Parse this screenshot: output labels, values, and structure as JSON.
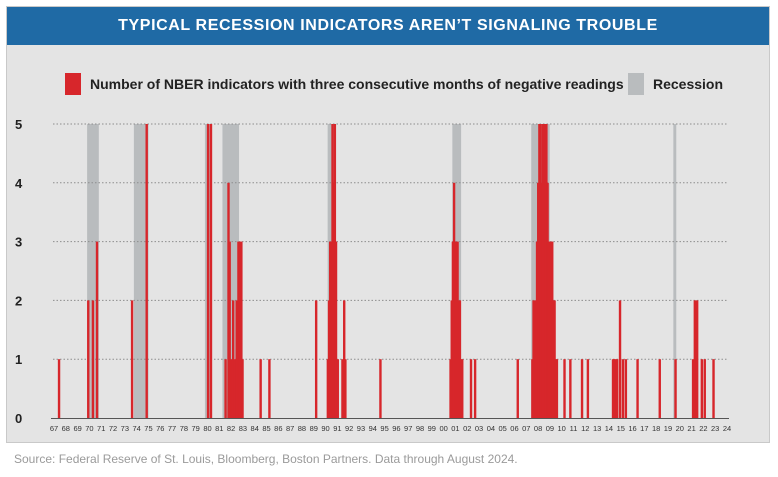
{
  "header": {
    "title": "TYPICAL RECESSION INDICATORS AREN’T SIGNALING TROUBLE"
  },
  "legend": {
    "indicator_label": "Number of NBER indicators with three consecutive months of negative readings",
    "recession_label": "Recession"
  },
  "colors": {
    "banner": "#1f6aa5",
    "indicator": "#d7262b",
    "recession": "#b9bcbe",
    "background": "#e4e4e4"
  },
  "source": "Source: Federal Reserve of St. Louis, Bloomberg, Boston Partners. Data through August 2024.",
  "chart_data": {
    "type": "bar",
    "title": "TYPICAL RECESSION INDICATORS AREN’T SIGNALING TROUBLE",
    "xlabel": "",
    "ylabel": "",
    "x_range": [
      1967.0,
      2024.67
    ],
    "ylim": [
      0,
      5
    ],
    "yticks": [
      0,
      1,
      2,
      3,
      4,
      5
    ],
    "xtick_labels": [
      "67",
      "68",
      "69",
      "70",
      "71",
      "72",
      "73",
      "74",
      "75",
      "76",
      "77",
      "78",
      "79",
      "80",
      "81",
      "82",
      "83",
      "84",
      "85",
      "86",
      "87",
      "88",
      "89",
      "90",
      "91",
      "92",
      "93",
      "94",
      "95",
      "96",
      "97",
      "98",
      "99",
      "00",
      "01",
      "02",
      "03",
      "04",
      "05",
      "06",
      "07",
      "08",
      "09",
      "10",
      "11",
      "12",
      "13",
      "14",
      "15",
      "16",
      "17",
      "18",
      "19",
      "20",
      "21",
      "22",
      "23",
      "24"
    ],
    "grid": "horizontal dotted",
    "legend_position": "top",
    "series": [
      {
        "name": "Number of NBER indicators with three consecutive months of negative readings",
        "color": "#d7262b",
        "points": [
          [
            1967.5,
            1
          ],
          [
            1970.0,
            2
          ],
          [
            1970.4,
            2
          ],
          [
            1970.75,
            3
          ],
          [
            1973.75,
            2
          ],
          [
            1975.0,
            5
          ],
          [
            1980.25,
            5
          ],
          [
            1980.5,
            5
          ],
          [
            1981.75,
            1
          ],
          [
            1982.0,
            4
          ],
          [
            1982.1,
            3
          ],
          [
            1982.25,
            1
          ],
          [
            1982.4,
            2
          ],
          [
            1982.55,
            1
          ],
          [
            1982.7,
            2
          ],
          [
            1982.85,
            3
          ],
          [
            1983.0,
            3
          ],
          [
            1983.1,
            3
          ],
          [
            1983.2,
            1
          ],
          [
            1984.75,
            1
          ],
          [
            1985.5,
            1
          ],
          [
            1989.5,
            2
          ],
          [
            1990.5,
            1
          ],
          [
            1990.6,
            2
          ],
          [
            1990.7,
            3
          ],
          [
            1990.8,
            3
          ],
          [
            1990.9,
            5
          ],
          [
            1991.0,
            4
          ],
          [
            1991.1,
            5
          ],
          [
            1991.2,
            3
          ],
          [
            1991.35,
            1
          ],
          [
            1991.75,
            1
          ],
          [
            1991.9,
            2
          ],
          [
            1992.0,
            1
          ],
          [
            1995.0,
            1
          ],
          [
            2001.0,
            1
          ],
          [
            2001.1,
            2
          ],
          [
            2001.2,
            3
          ],
          [
            2001.3,
            4
          ],
          [
            2001.4,
            3
          ],
          [
            2001.5,
            3
          ],
          [
            2001.6,
            3
          ],
          [
            2001.7,
            2
          ],
          [
            2001.8,
            2
          ],
          [
            2001.9,
            1
          ],
          [
            2002.0,
            1
          ],
          [
            2002.75,
            1
          ],
          [
            2003.1,
            1
          ],
          [
            2006.75,
            1
          ],
          [
            2008.0,
            1
          ],
          [
            2008.1,
            2
          ],
          [
            2008.2,
            2
          ],
          [
            2008.3,
            2
          ],
          [
            2008.4,
            3
          ],
          [
            2008.5,
            4
          ],
          [
            2008.6,
            5
          ],
          [
            2008.7,
            5
          ],
          [
            2008.8,
            4
          ],
          [
            2008.9,
            5
          ],
          [
            2009.0,
            5
          ],
          [
            2009.1,
            5
          ],
          [
            2009.2,
            5
          ],
          [
            2009.3,
            4
          ],
          [
            2009.4,
            3
          ],
          [
            2009.5,
            3
          ],
          [
            2009.6,
            3
          ],
          [
            2009.7,
            3
          ],
          [
            2009.8,
            2
          ],
          [
            2009.9,
            2
          ],
          [
            2010.0,
            1
          ],
          [
            2010.1,
            1
          ],
          [
            2010.75,
            1
          ],
          [
            2011.25,
            1
          ],
          [
            2012.25,
            1
          ],
          [
            2012.75,
            1
          ],
          [
            2014.9,
            1
          ],
          [
            2015.0,
            1
          ],
          [
            2015.1,
            1
          ],
          [
            2015.25,
            1
          ],
          [
            2015.5,
            2
          ],
          [
            2015.75,
            1
          ],
          [
            2016.0,
            1
          ],
          [
            2017.0,
            1
          ],
          [
            2018.9,
            1
          ],
          [
            2020.25,
            1
          ],
          [
            2021.75,
            1
          ],
          [
            2021.9,
            2
          ],
          [
            2022.0,
            2
          ],
          [
            2022.1,
            2
          ],
          [
            2022.5,
            1
          ],
          [
            2022.75,
            1
          ],
          [
            2023.5,
            1
          ]
        ]
      },
      {
        "name": "Recession",
        "color": "#b9bcbe",
        "periods": [
          [
            1969.92,
            1970.92
          ],
          [
            1973.92,
            1975.17
          ],
          [
            1980.0,
            1980.5
          ],
          [
            1981.5,
            1982.92
          ],
          [
            1990.5,
            1991.17
          ],
          [
            2001.17,
            2001.92
          ],
          [
            2007.92,
            2009.5
          ],
          [
            2020.08,
            2020.33
          ]
        ]
      }
    ]
  }
}
